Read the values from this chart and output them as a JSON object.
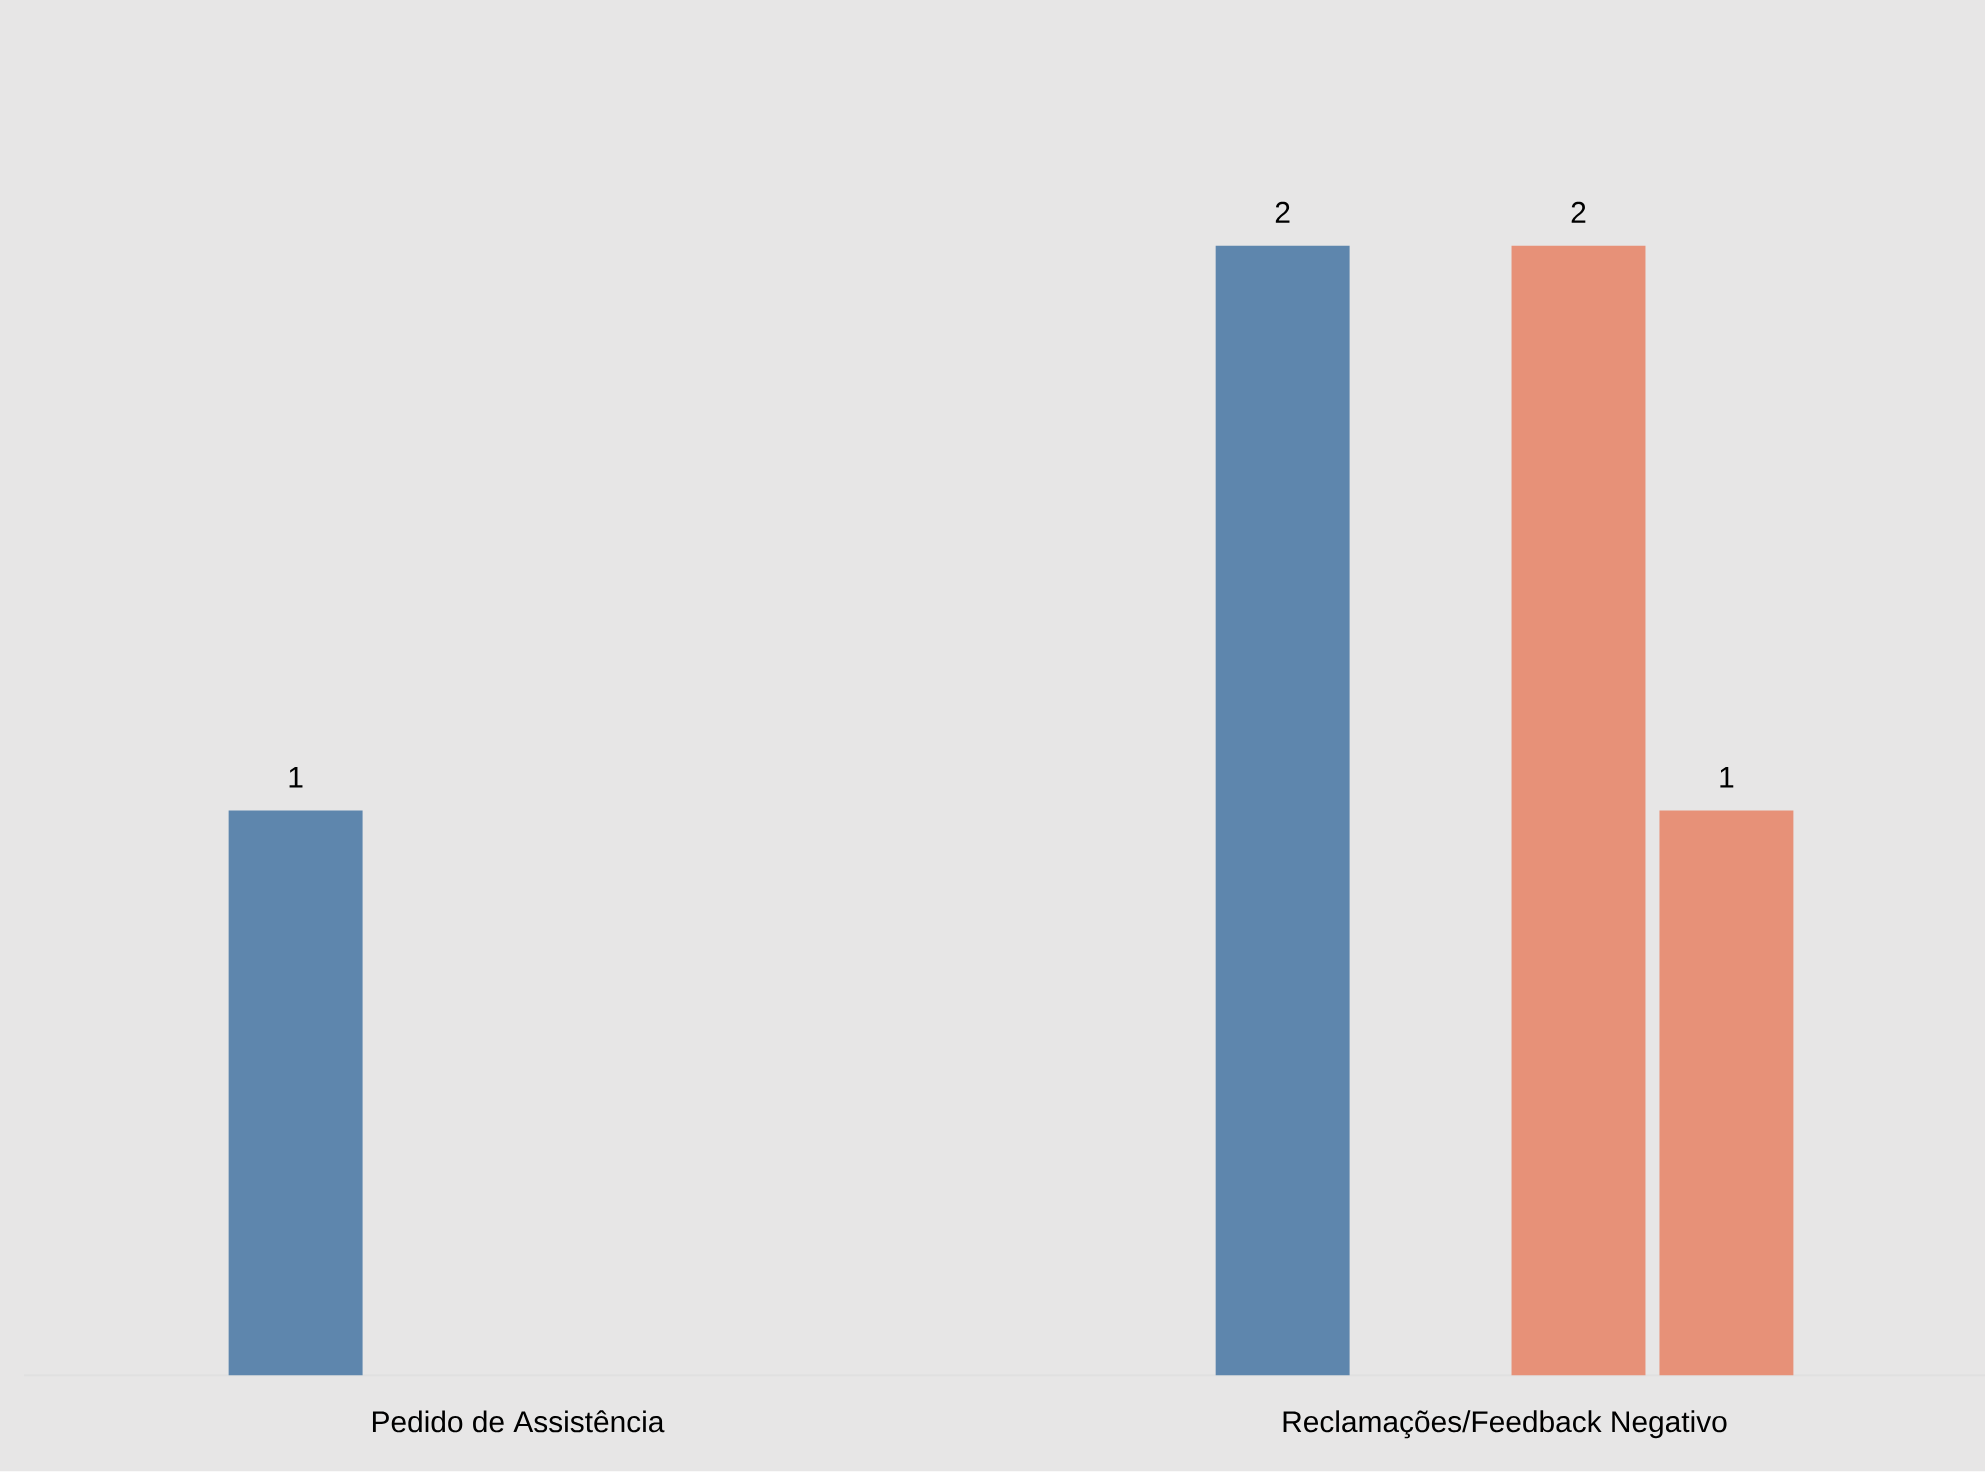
{
  "chart_data": {
    "type": "bar",
    "categories": [
      "Pedido de Assistência",
      "Reclamações/Feedback Negativo"
    ],
    "series": [
      {
        "color": "#5e86ad",
        "values": [
          1,
          2
        ]
      },
      {
        "values": [
          null,
          null
        ]
      },
      {
        "color": "#e79178",
        "values": [
          null,
          2
        ]
      },
      {
        "color": "#e79178",
        "values": [
          null,
          1
        ]
      }
    ],
    "data_labels": true
  }
}
